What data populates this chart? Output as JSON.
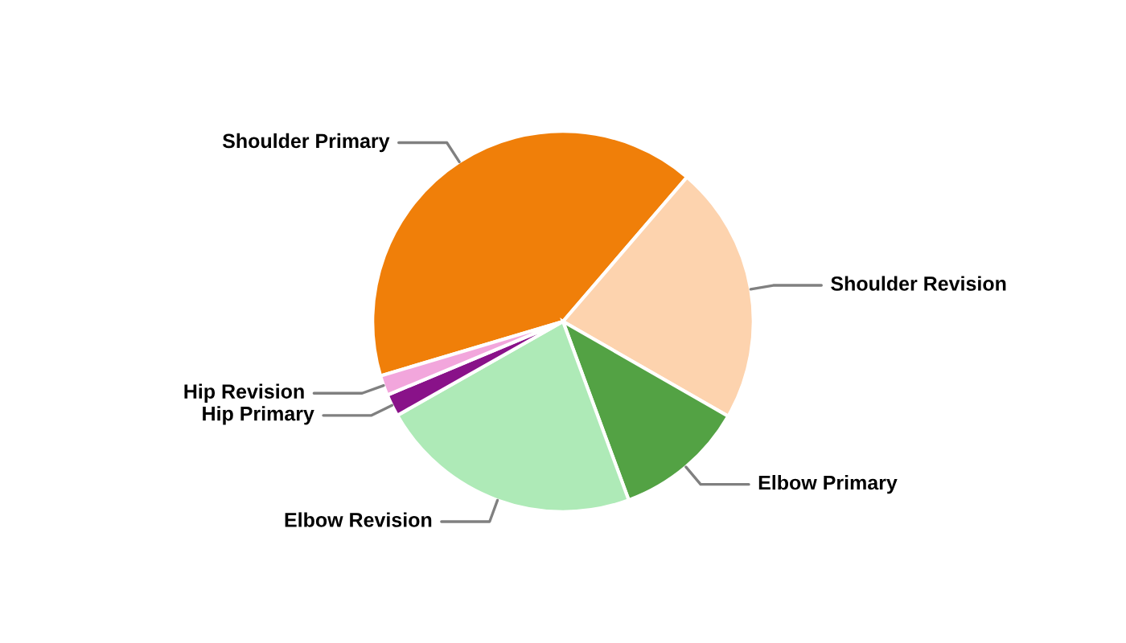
{
  "chart_data": {
    "type": "pie",
    "categories": [
      "Shoulder Primary",
      "Shoulder Revision",
      "Elbow Primary",
      "Elbow Revision",
      "Hip Primary",
      "Hip Revision"
    ],
    "values": [
      40.9,
      22,
      11.1,
      22.4,
      1.9,
      1.7
    ],
    "colors": [
      "#f07f09",
      "#fdd3ae",
      "#53a244",
      "#aeeab7",
      "#891289",
      "#f2a6dc"
    ]
  }
}
